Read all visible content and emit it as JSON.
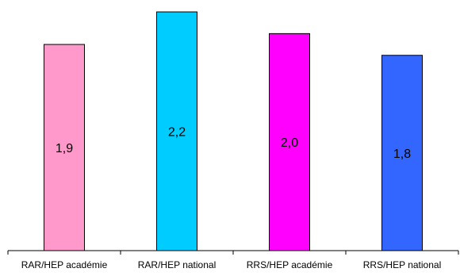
{
  "chart_data": {
    "type": "bar",
    "title": "",
    "xlabel": "",
    "ylabel": "",
    "categories": [
      "RAR/HEP académie",
      "RAR/HEP national",
      "RRS/HEP académie",
      "RRS/HEP national"
    ],
    "values": [
      1.9,
      2.2,
      2.0,
      1.8
    ],
    "value_labels": [
      "1,9",
      "2,2",
      "2,0",
      "1,8"
    ],
    "bar_colors": [
      "#FF99CC",
      "#00CCFF",
      "#FF00FF",
      "#3366FF"
    ],
    "ylim": [
      0,
      2.2
    ],
    "grid": false,
    "legend": "none"
  }
}
